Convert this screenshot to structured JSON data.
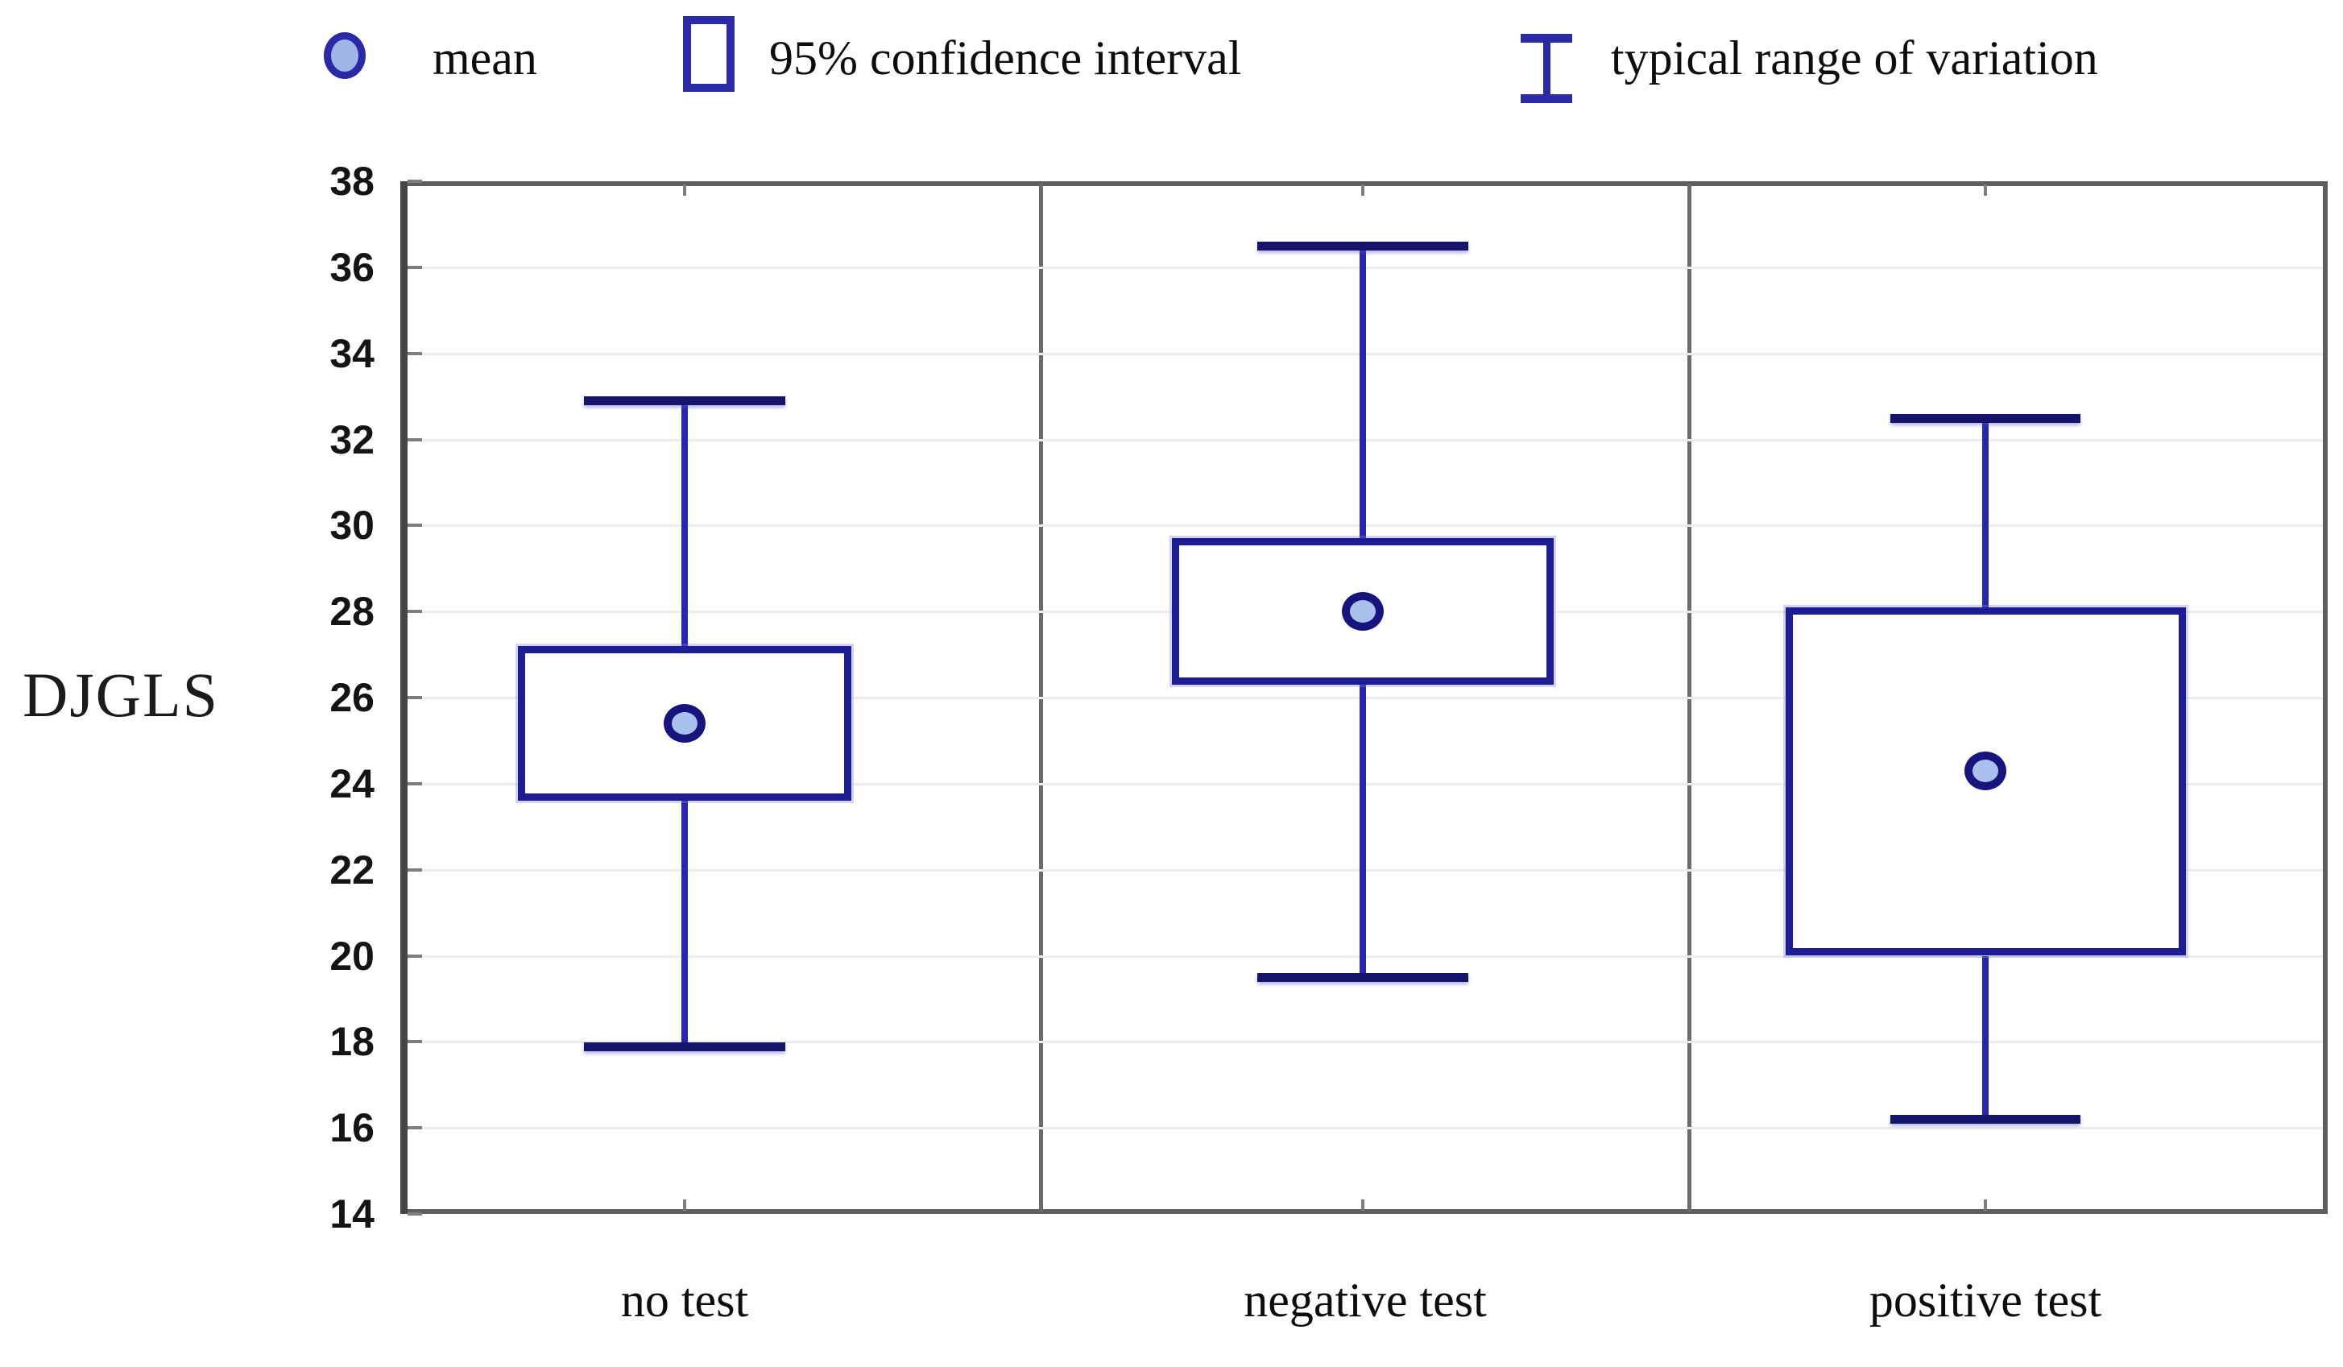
{
  "legend": {
    "items": [
      {
        "label": "mean",
        "glyph": "mean-circle-icon"
      },
      {
        "label": "95% confidence interval",
        "glyph": "confidence-box-icon"
      },
      {
        "label": "typical range of variation",
        "glyph": "range-whisker-icon"
      }
    ]
  },
  "y_axis": {
    "label": "DJGLS",
    "ticks": [
      38,
      36,
      34,
      32,
      30,
      28,
      26,
      24,
      22,
      20,
      18,
      16,
      14
    ]
  },
  "x_axis": {
    "categories": [
      "no test",
      "negative test",
      "positive test"
    ]
  },
  "chart_data": {
    "type": "box",
    "title": "",
    "xlabel": "",
    "ylabel": "DJGLS",
    "ylim": [
      14,
      38
    ],
    "ytick_step": 2,
    "grid": "horizontal",
    "legend_position": "top",
    "categories": [
      "no test",
      "negative test",
      "positive test"
    ],
    "groups": [
      {
        "category": "no test",
        "mean": 25.4,
        "ci_low": 23.6,
        "ci_high": 27.2,
        "range_low": 17.9,
        "range_high": 32.9
      },
      {
        "category": "negative test",
        "mean": 28.0,
        "ci_low": 26.3,
        "ci_high": 29.7,
        "range_low": 19.5,
        "range_high": 36.5
      },
      {
        "category": "positive test",
        "mean": 24.3,
        "ci_low": 20.0,
        "ci_high": 28.1,
        "range_low": 16.2,
        "range_high": 32.5
      }
    ]
  },
  "colors": {
    "box_stroke": "#1d1d96",
    "whisker": "#2626b0",
    "whisker_cap": "#15156b",
    "mean_fill": "#a9c0ec",
    "mean_stroke": "#15157d",
    "legend_glyph": "#2a2aa6",
    "frame_gray": "#5e5e5e",
    "gridline": "#ededed",
    "text": "#111111"
  }
}
